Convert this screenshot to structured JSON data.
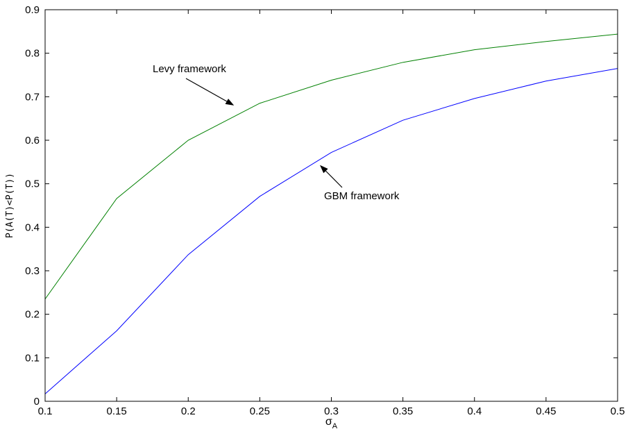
{
  "chart_data": {
    "type": "line",
    "title": "",
    "xlabel": "σ",
    "xlabel_sub": "A",
    "ylabel": "P(A(T)<P(T))",
    "xlim": [
      0.1,
      0.5
    ],
    "ylim": [
      0,
      0.9
    ],
    "x": [
      0.1,
      0.15,
      0.2,
      0.25,
      0.3,
      0.35,
      0.4,
      0.45,
      0.5
    ],
    "xticks": [
      "0.1",
      "0.15",
      "0.2",
      "0.25",
      "0.3",
      "0.35",
      "0.4",
      "0.45",
      "0.5"
    ],
    "yticks": [
      "0",
      "0.1",
      "0.2",
      "0.3",
      "0.4",
      "0.5",
      "0.6",
      "0.7",
      "0.8",
      "0.9"
    ],
    "grid": false,
    "series": [
      {
        "color": "#008000",
        "values": [
          0.235,
          0.466,
          0.6,
          0.685,
          0.738,
          0.779,
          0.808,
          0.827,
          0.844
        ]
      },
      {
        "color": "#0000ff",
        "values": [
          0.017,
          0.162,
          0.337,
          0.471,
          0.572,
          0.646,
          0.696,
          0.736,
          0.765
        ]
      }
    ],
    "annotations": [
      {
        "text": "Levy framework",
        "arrow_to": [
          0.232,
          0.68
        ]
      },
      {
        "text": "GBM framework",
        "arrow_to": [
          0.292,
          0.543
        ]
      }
    ]
  }
}
